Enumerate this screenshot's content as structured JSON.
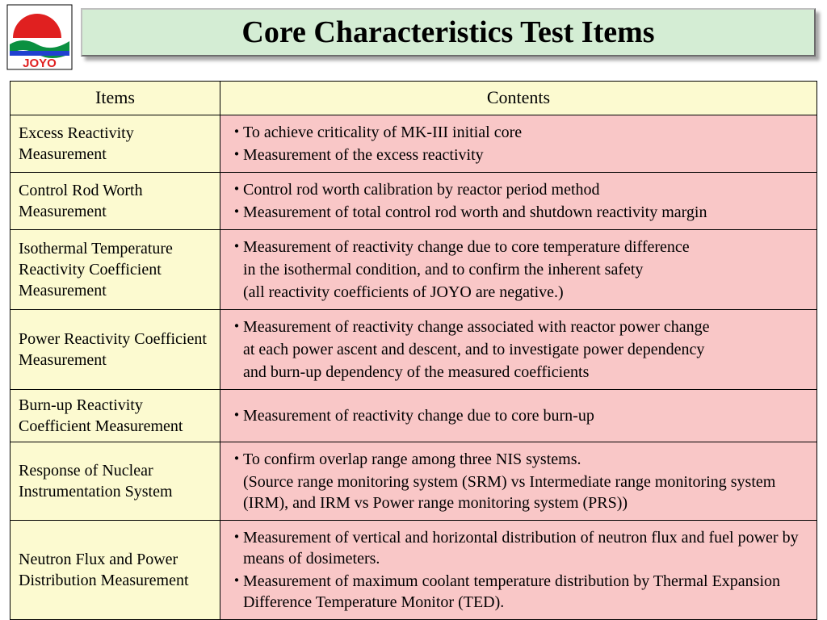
{
  "title": "Core Characteristics Test Items",
  "logo_text": "JOYO",
  "headers": {
    "items": "Items",
    "contents": "Contents"
  },
  "rows": [
    {
      "item": "Excess Reactivity Measurement",
      "lines": [
        {
          "bullet": true,
          "text": "To achieve criticality of MK-III initial core"
        },
        {
          "bullet": true,
          "text": "Measurement of the excess reactivity"
        }
      ]
    },
    {
      "item": "Control Rod Worth Measurement",
      "lines": [
        {
          "bullet": true,
          "text": "Control rod worth calibration by reactor period method"
        },
        {
          "bullet": true,
          "text": "Measurement of total control rod worth and shutdown reactivity margin"
        }
      ]
    },
    {
      "item": "Isothermal Temperature Reactivity Coefficient Measurement",
      "lines": [
        {
          "bullet": true,
          "text": "Measurement of reactivity change due to core temperature difference"
        },
        {
          "bullet": false,
          "text": "in the isothermal condition, and to confirm the inherent safety"
        },
        {
          "bullet": false,
          "text": "(all reactivity coefficients of JOYO are negative.)"
        }
      ]
    },
    {
      "item": "Power Reactivity Coefficient Measurement",
      "lines": [
        {
          "bullet": true,
          "text": "Measurement of reactivity change associated with reactor power change"
        },
        {
          "bullet": false,
          "text": "at each power ascent and descent, and to investigate power dependency"
        },
        {
          "bullet": false,
          "text": "and burn-up dependency of the measured coefficients"
        }
      ]
    },
    {
      "item": "Burn-up Reactivity Coefficient Measurement",
      "lines": [
        {
          "bullet": true,
          "text": "Measurement of reactivity change due to core burn-up"
        }
      ]
    },
    {
      "item": "Response of Nuclear Instrumentation System",
      "lines": [
        {
          "bullet": true,
          "text": "To confirm overlap range among three NIS systems."
        },
        {
          "bullet": false,
          "text": "(Source range monitoring system (SRM) vs Intermediate range monitoring system (IRM), and IRM vs Power range monitoring system (PRS))"
        }
      ]
    },
    {
      "item": "Neutron Flux and Power Distribution Measurement",
      "lines": [
        {
          "bullet": true,
          "text": "Measurement of vertical and horizontal distribution of neutron flux and fuel power by means of dosimeters."
        },
        {
          "bullet": true,
          "text": "Measurement of maximum coolant temperature distribution by Thermal Expansion Difference Temperature Monitor (TED)."
        }
      ]
    }
  ],
  "colors": {
    "title_bg": "#d4edd4",
    "header_bg": "#fcfad0",
    "item_bg": "#fcfad0",
    "content_bg": "#f9c7c7",
    "border": "#000000",
    "logo_red": "#e02020",
    "logo_green": "#0a9040",
    "logo_blue": "#2040d0"
  }
}
